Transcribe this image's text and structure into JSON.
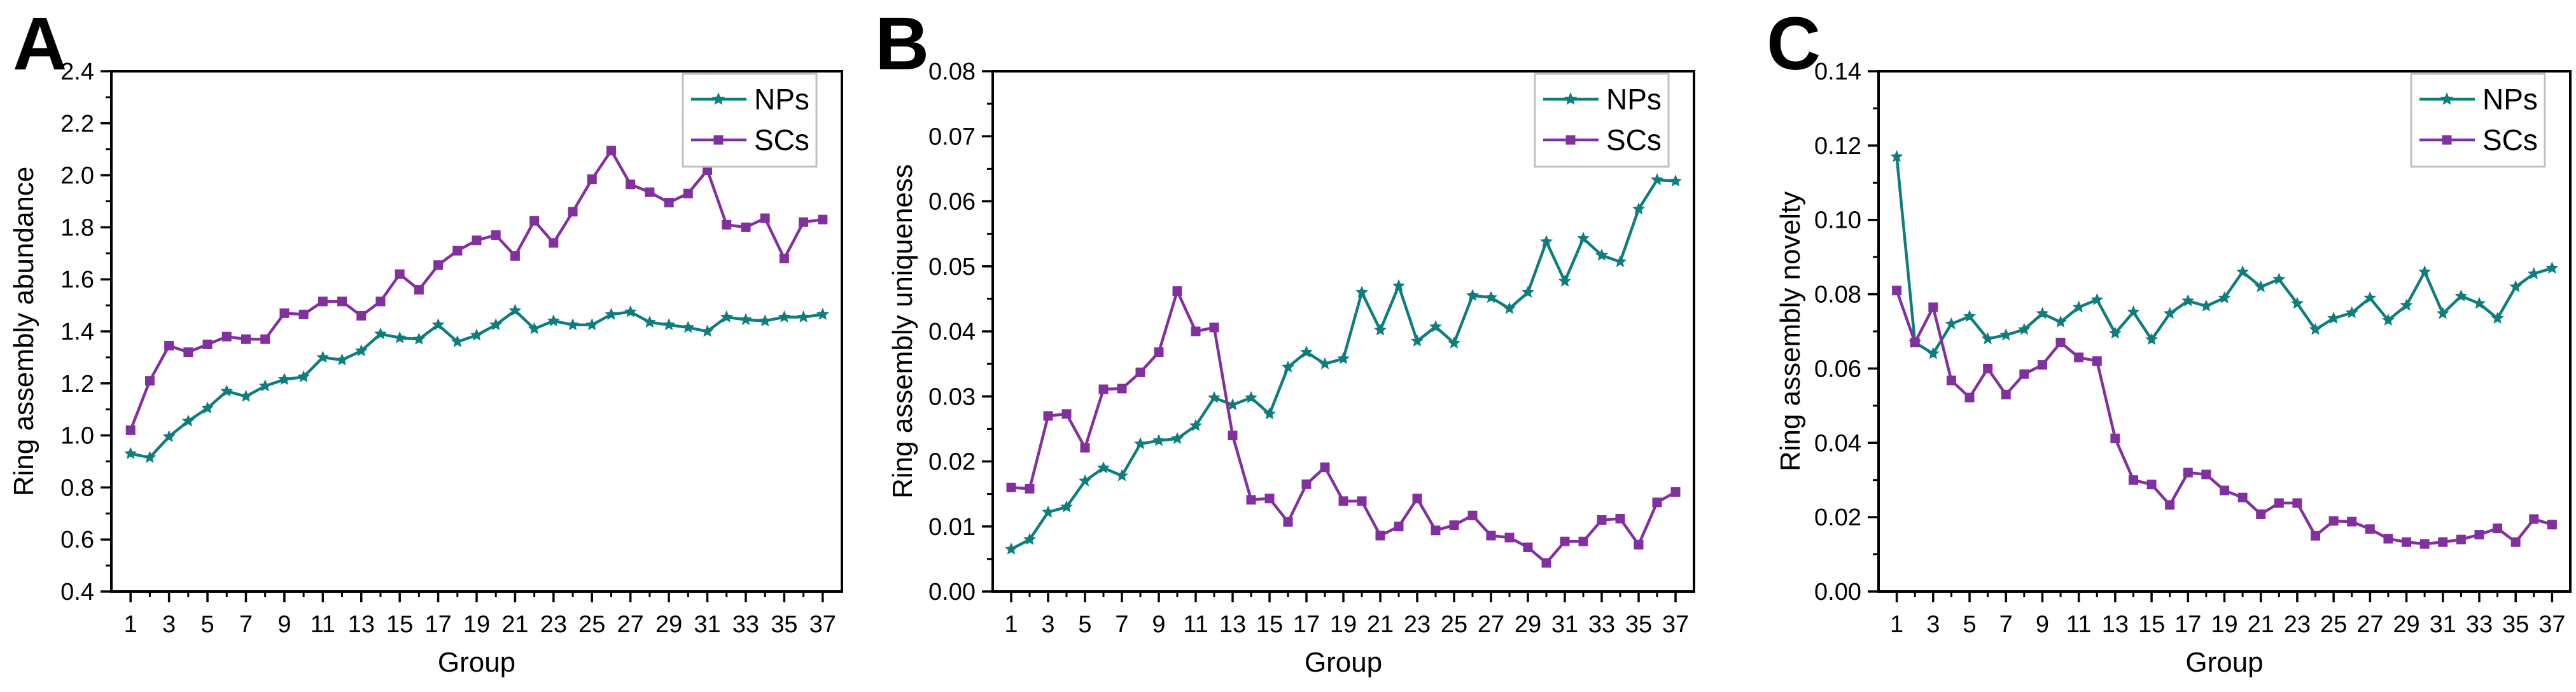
{
  "colors": {
    "nps": "#0d7d7d",
    "scs": "#8230a0",
    "axis": "#000000",
    "text": "#000000",
    "legend_border": "#c0c0c0",
    "legend_bg": "#ffffff",
    "background": "#ffffff"
  },
  "chart_data": [
    {
      "type": "line",
      "panel_label": "A",
      "xlabel": "Group",
      "ylabel": "Ring assembly abundance",
      "legend_position": "top-right",
      "grid": false,
      "xlim": [
        0,
        38
      ],
      "ylim": [
        0.4,
        2.4
      ],
      "y_minor_step": 0.1,
      "y_tick_values": [
        0.4,
        0.6,
        0.8,
        1.0,
        1.2,
        1.4,
        1.6,
        1.8,
        2.0,
        2.2,
        2.4
      ],
      "y_tick_labels": [
        "0.4",
        "0.6",
        "0.8",
        "1.0",
        "1.2",
        "1.4",
        "1.6",
        "1.8",
        "2.0",
        "2.2",
        "2.4"
      ],
      "x": [
        1,
        2,
        3,
        4,
        5,
        6,
        7,
        8,
        9,
        10,
        11,
        12,
        13,
        14,
        15,
        16,
        17,
        18,
        19,
        20,
        21,
        22,
        23,
        24,
        25,
        26,
        27,
        28,
        29,
        30,
        31,
        32,
        33,
        34,
        35,
        36,
        37
      ],
      "x_major_ticks": [
        1,
        3,
        5,
        7,
        9,
        11,
        13,
        15,
        17,
        19,
        21,
        23,
        25,
        27,
        29,
        31,
        33,
        35,
        37
      ],
      "x_tick_labels": [
        "1",
        "3",
        "5",
        "7",
        "9",
        "11",
        "13",
        "15",
        "17",
        "19",
        "21",
        "23",
        "25",
        "27",
        "29",
        "31",
        "33",
        "35",
        "37"
      ],
      "x_minor_ticks": [
        2,
        4,
        6,
        8,
        10,
        12,
        14,
        16,
        18,
        20,
        22,
        24,
        26,
        28,
        30,
        32,
        34,
        36
      ],
      "series": [
        {
          "name": "NPs",
          "color": "#0d7d7d",
          "marker": "star",
          "values": [
            0.93,
            0.915,
            0.995,
            1.055,
            1.105,
            1.17,
            1.15,
            1.19,
            1.215,
            1.225,
            1.3,
            1.29,
            1.325,
            1.39,
            1.375,
            1.37,
            1.425,
            1.36,
            1.385,
            1.425,
            1.48,
            1.41,
            1.44,
            1.425,
            1.425,
            1.465,
            1.475,
            1.435,
            1.425,
            1.415,
            1.4,
            1.455,
            1.445,
            1.44,
            1.455,
            1.455,
            1.465
          ]
        },
        {
          "name": "SCs",
          "color": "#8230a0",
          "marker": "square",
          "values": [
            1.02,
            1.21,
            1.345,
            1.32,
            1.35,
            1.38,
            1.37,
            1.37,
            1.47,
            1.465,
            1.515,
            1.515,
            1.46,
            1.515,
            1.62,
            1.56,
            1.655,
            1.71,
            1.75,
            1.77,
            1.69,
            1.825,
            1.74,
            1.86,
            1.985,
            2.095,
            1.965,
            1.935,
            1.895,
            1.93,
            2.02,
            1.81,
            1.8,
            1.835,
            1.68,
            1.82,
            1.83
          ]
        }
      ]
    },
    {
      "type": "line",
      "panel_label": "B",
      "xlabel": "Group",
      "ylabel": "Ring assembly uniqueness",
      "legend_position": "top-right",
      "grid": false,
      "xlim": [
        0,
        38
      ],
      "ylim": [
        0.0,
        0.08
      ],
      "y_minor_step": 0.005,
      "y_tick_values": [
        0.0,
        0.01,
        0.02,
        0.03,
        0.04,
        0.05,
        0.06,
        0.07,
        0.08
      ],
      "y_tick_labels": [
        "0.00",
        "0.01",
        "0.02",
        "0.03",
        "0.04",
        "0.05",
        "0.06",
        "0.07",
        "0.08"
      ],
      "x": [
        1,
        2,
        3,
        4,
        5,
        6,
        7,
        8,
        9,
        10,
        11,
        12,
        13,
        14,
        15,
        16,
        17,
        18,
        19,
        20,
        21,
        22,
        23,
        24,
        25,
        26,
        27,
        28,
        29,
        30,
        31,
        32,
        33,
        34,
        35,
        36,
        37
      ],
      "x_major_ticks": [
        1,
        3,
        5,
        7,
        9,
        11,
        13,
        15,
        17,
        19,
        21,
        23,
        25,
        27,
        29,
        31,
        33,
        35,
        37
      ],
      "x_tick_labels": [
        "1",
        "3",
        "5",
        "7",
        "9",
        "11",
        "13",
        "15",
        "17",
        "19",
        "21",
        "23",
        "25",
        "27",
        "29",
        "31",
        "33",
        "35",
        "37"
      ],
      "x_minor_ticks": [
        2,
        4,
        6,
        8,
        10,
        12,
        14,
        16,
        18,
        20,
        22,
        24,
        26,
        28,
        30,
        32,
        34,
        36
      ],
      "series": [
        {
          "name": "NPs",
          "color": "#0d7d7d",
          "marker": "star",
          "values": [
            0.0065,
            0.008,
            0.0122,
            0.013,
            0.017,
            0.019,
            0.0178,
            0.0227,
            0.0232,
            0.0235,
            0.0255,
            0.0298,
            0.0287,
            0.0298,
            0.0273,
            0.0345,
            0.0368,
            0.035,
            0.0358,
            0.046,
            0.0402,
            0.047,
            0.0385,
            0.0407,
            0.0382,
            0.0455,
            0.0452,
            0.0435,
            0.046,
            0.0538,
            0.0477,
            0.0543,
            0.0517,
            0.0507,
            0.0588,
            0.0633,
            0.0631
          ]
        },
        {
          "name": "SCs",
          "color": "#8230a0",
          "marker": "square",
          "values": [
            0.016,
            0.0158,
            0.027,
            0.0273,
            0.0221,
            0.0311,
            0.0312,
            0.0337,
            0.0368,
            0.0462,
            0.04,
            0.0406,
            0.024,
            0.0141,
            0.0143,
            0.0107,
            0.0165,
            0.0191,
            0.0139,
            0.0139,
            0.0086,
            0.01,
            0.0143,
            0.0094,
            0.0102,
            0.0117,
            0.0086,
            0.0083,
            0.0068,
            0.0044,
            0.0077,
            0.0077,
            0.011,
            0.0112,
            0.0072,
            0.0137,
            0.0153
          ]
        }
      ]
    },
    {
      "type": "line",
      "panel_label": "C",
      "xlabel": "Group",
      "ylabel": "Ring assembly novelty",
      "legend_position": "top-right",
      "grid": false,
      "xlim": [
        0,
        38
      ],
      "ylim": [
        0.0,
        0.14
      ],
      "y_minor_step": 0.01,
      "y_tick_values": [
        0.0,
        0.02,
        0.04,
        0.06,
        0.08,
        0.1,
        0.12,
        0.14
      ],
      "y_tick_labels": [
        "0.00",
        "0.02",
        "0.04",
        "0.06",
        "0.08",
        "0.10",
        "0.12",
        "0.14"
      ],
      "x": [
        1,
        2,
        3,
        4,
        5,
        6,
        7,
        8,
        9,
        10,
        11,
        12,
        13,
        14,
        15,
        16,
        17,
        18,
        19,
        20,
        21,
        22,
        23,
        24,
        25,
        26,
        27,
        28,
        29,
        30,
        31,
        32,
        33,
        34,
        35,
        36,
        37
      ],
      "x_major_ticks": [
        1,
        3,
        5,
        7,
        9,
        11,
        13,
        15,
        17,
        19,
        21,
        23,
        25,
        27,
        29,
        31,
        33,
        35,
        37
      ],
      "x_tick_labels": [
        "1",
        "3",
        "5",
        "7",
        "9",
        "11",
        "13",
        "15",
        "17",
        "19",
        "21",
        "23",
        "25",
        "27",
        "29",
        "31",
        "33",
        "35",
        "37"
      ],
      "x_minor_ticks": [
        2,
        4,
        6,
        8,
        10,
        12,
        14,
        16,
        18,
        20,
        22,
        24,
        26,
        28,
        30,
        32,
        34,
        36
      ],
      "series": [
        {
          "name": "NPs",
          "color": "#0d7d7d",
          "marker": "star",
          "values": [
            0.117,
            0.067,
            0.064,
            0.072,
            0.074,
            0.068,
            0.069,
            0.0705,
            0.0748,
            0.0725,
            0.0765,
            0.0785,
            0.0695,
            0.0752,
            0.0678,
            0.0748,
            0.0782,
            0.0768,
            0.079,
            0.086,
            0.082,
            0.084,
            0.0775,
            0.0705,
            0.0735,
            0.075,
            0.079,
            0.073,
            0.077,
            0.086,
            0.0748,
            0.0795,
            0.0775,
            0.0735,
            0.082,
            0.0855,
            0.087
          ]
        },
        {
          "name": "SCs",
          "color": "#8230a0",
          "marker": "square",
          "values": [
            0.081,
            0.067,
            0.0765,
            0.0568,
            0.0522,
            0.06,
            0.053,
            0.0585,
            0.061,
            0.067,
            0.063,
            0.062,
            0.0412,
            0.03,
            0.0288,
            0.0233,
            0.032,
            0.0315,
            0.0272,
            0.0253,
            0.0208,
            0.0238,
            0.0238,
            0.015,
            0.019,
            0.0188,
            0.0168,
            0.0142,
            0.0133,
            0.0128,
            0.0133,
            0.014,
            0.0153,
            0.017,
            0.0133,
            0.0195,
            0.018
          ]
        }
      ]
    }
  ]
}
